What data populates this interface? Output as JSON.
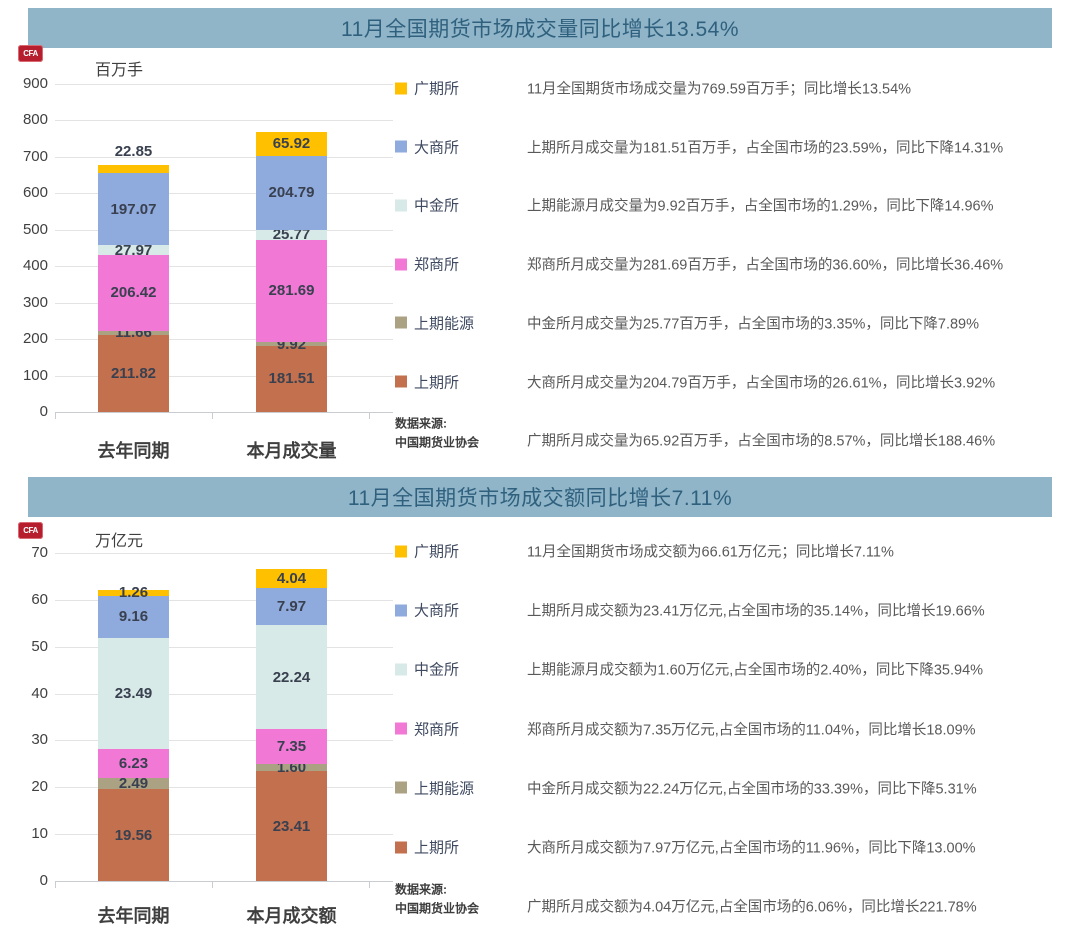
{
  "brand": {
    "logo_glyph": "CFA"
  },
  "colors": {
    "header_bg": "#90b4c8",
    "header_text": "#2f617e",
    "gridline": "#e3e3e3",
    "axis_text": "#404040",
    "bar_label_text": "#39404f",
    "narrative_text": "#595959",
    "legend_text": "#3f4a61"
  },
  "chart_data": [
    {
      "type": "bar",
      "stacked": true,
      "title": "11月全国期货市场成交量同比增长13.54%",
      "unit_label": "百万手",
      "ylim": [
        0,
        900
      ],
      "ytick_step": 100,
      "grid": true,
      "legend_position": "right",
      "categories": [
        "去年同期",
        "本月成交量"
      ],
      "series": [
        {
          "name": "上期所",
          "color": "#c2704e",
          "values": [
            211.82,
            181.51
          ]
        },
        {
          "name": "上期能源",
          "color": "#aba284",
          "values": [
            11.66,
            9.92
          ]
        },
        {
          "name": "郑商所",
          "color": "#f278d6",
          "values": [
            206.42,
            281.69
          ]
        },
        {
          "name": "中金所",
          "color": "#d7eae7",
          "values": [
            27.97,
            25.77
          ]
        },
        {
          "name": "大商所",
          "color": "#8faadc",
          "values": [
            197.07,
            204.79
          ]
        },
        {
          "name": "广期所",
          "color": "#ffc000",
          "values": [
            22.85,
            65.92
          ],
          "label_above": [
            true,
            false
          ]
        }
      ],
      "legend": [
        {
          "label": "广期所",
          "color": "#ffc000"
        },
        {
          "label": "大商所",
          "color": "#8faadc"
        },
        {
          "label": "中金所",
          "color": "#d7eae7"
        },
        {
          "label": "郑商所",
          "color": "#f278d6"
        },
        {
          "label": "上期能源",
          "color": "#aba284"
        },
        {
          "label": "上期所",
          "color": "#c2704e"
        }
      ],
      "narratives": [
        "11月全国期货市场成交量为769.59百万手；同比增长13.54%",
        "上期所月成交量为181.51百万手，占全国市场的23.59%，同比下降14.31%",
        "上期能源月成交量为9.92百万手，占全国市场的1.29%，同比下降14.96%",
        "郑商所月成交量为281.69百万手，占全国市场的36.60%，同比增长36.46%",
        "中金所月成交量为25.77百万手，占全国市场的3.35%，同比下降7.89%",
        "大商所月成交量为204.79百万手，占全国市场的26.61%，同比增长3.92%",
        "广期所月成交量为65.92百万手，占全国市场的8.57%，同比增长188.46%"
      ],
      "source": [
        "数据来源:",
        "中国期货业协会"
      ]
    },
    {
      "type": "bar",
      "stacked": true,
      "title": "11月全国期货市场成交额同比增长7.11%",
      "unit_label": "万亿元",
      "ylim": [
        0,
        70
      ],
      "ytick_step": 10,
      "grid": true,
      "legend_position": "right",
      "categories": [
        "去年同期",
        "本月成交额"
      ],
      "series": [
        {
          "name": "上期所",
          "color": "#c2704e",
          "values": [
            19.56,
            23.41
          ]
        },
        {
          "name": "上期能源",
          "color": "#aba284",
          "values": [
            2.49,
            1.6
          ]
        },
        {
          "name": "郑商所",
          "color": "#f278d6",
          "values": [
            6.23,
            7.35
          ]
        },
        {
          "name": "中金所",
          "color": "#d7eae7",
          "values": [
            23.49,
            22.24
          ]
        },
        {
          "name": "大商所",
          "color": "#8faadc",
          "values": [
            9.16,
            7.97
          ]
        },
        {
          "name": "广期所",
          "color": "#ffc000",
          "values": [
            1.26,
            4.04
          ]
        }
      ],
      "legend": [
        {
          "label": "广期所",
          "color": "#ffc000"
        },
        {
          "label": "大商所",
          "color": "#8faadc"
        },
        {
          "label": "中金所",
          "color": "#d7eae7"
        },
        {
          "label": "郑商所",
          "color": "#f278d6"
        },
        {
          "label": "上期能源",
          "color": "#aba284"
        },
        {
          "label": "上期所",
          "color": "#c2704e"
        }
      ],
      "narratives": [
        "11月全国期货市场成交额为66.61万亿元；同比增长7.11%",
        "上期所月成交额为23.41万亿元,占全国市场的35.14%，同比增长19.66%",
        "上期能源月成交额为1.60万亿元,占全国市场的2.40%，同比下降35.94%",
        "郑商所月成交额为7.35万亿元,占全国市场的11.04%，同比增长18.09%",
        "中金所月成交额为22.24万亿元,占全国市场的33.39%，同比下降5.31%",
        "大商所月成交额为7.97万亿元,占全国市场的11.96%，同比下降13.00%",
        "广期所月成交额为4.04万亿元,占全国市场的6.06%，同比增长221.78%"
      ],
      "source": [
        "数据来源:",
        "中国期货业协会"
      ]
    }
  ]
}
